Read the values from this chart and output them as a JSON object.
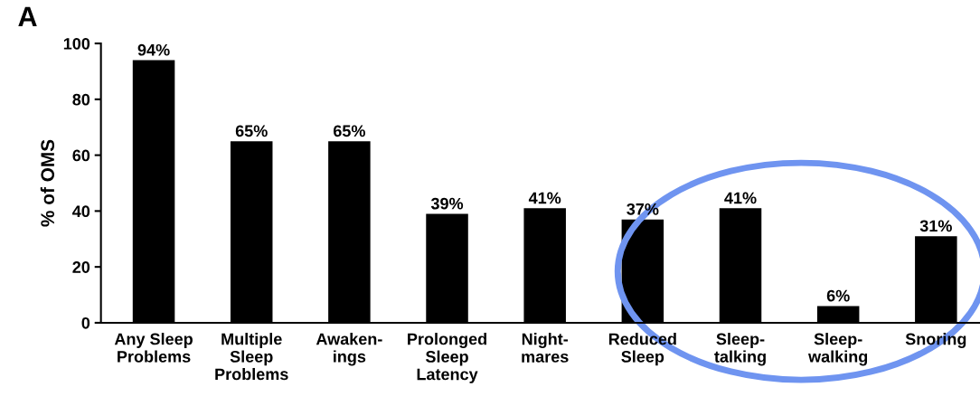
{
  "chart_data": {
    "type": "bar",
    "ylabel": "% of OMS",
    "categories": [
      "Any Sleep\nProblems",
      "Multiple\nSleep\nProblems",
      "Awaken-\nings",
      "Prolonged\nSleep\nLatency",
      "Night-\nmares",
      "Reduced\nSleep",
      "Sleep-\ntalking",
      "Sleep-\nwalking",
      "Snoring"
    ],
    "values": [
      94,
      65,
      65,
      39,
      41,
      37,
      41,
      6,
      31
    ],
    "value_labels": [
      "94%",
      "65%",
      "65%",
      "39%",
      "41%",
      "37%",
      "41%",
      "6%",
      "31%"
    ],
    "color": "#000000",
    "ylim": [
      0,
      100
    ],
    "yticks": [
      0,
      20,
      40,
      60,
      80,
      100
    ],
    "grid": false,
    "legend": false,
    "annotations": [
      "A"
    ]
  }
}
